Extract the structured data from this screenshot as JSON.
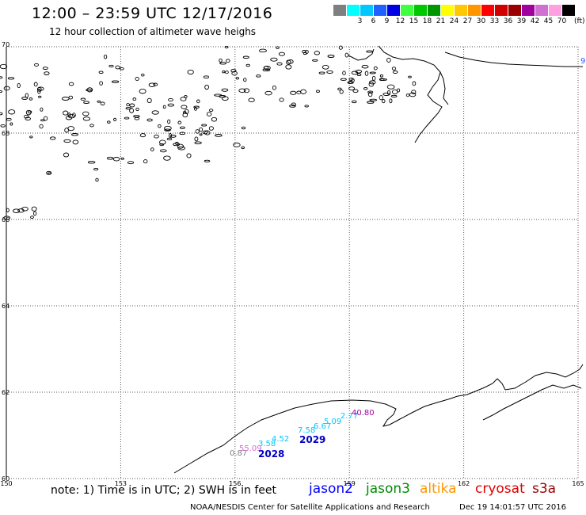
{
  "header": {
    "title": "12:00 – 23:59 UTC 12/17/2016",
    "subtitle": "12 hour collection of altimeter wave heighs"
  },
  "color_scale": {
    "unit": "(ft)",
    "bins": [
      {
        "color": "#7f7f7f",
        "label": ""
      },
      {
        "color": "#00ffff",
        "label": "3"
      },
      {
        "color": "#00c8ff",
        "label": "6"
      },
      {
        "color": "#2060ff",
        "label": "9"
      },
      {
        "color": "#0000e0",
        "label": "12"
      },
      {
        "color": "#40ff40",
        "label": "15"
      },
      {
        "color": "#00c800",
        "label": "18"
      },
      {
        "color": "#009600",
        "label": "21"
      },
      {
        "color": "#ffff00",
        "label": "24"
      },
      {
        "color": "#ffc800",
        "label": "27"
      },
      {
        "color": "#ff9600",
        "label": "30"
      },
      {
        "color": "#ff0000",
        "label": "33"
      },
      {
        "color": "#d00000",
        "label": "36"
      },
      {
        "color": "#9a0000",
        "label": "39"
      },
      {
        "color": "#a000a0",
        "label": "42"
      },
      {
        "color": "#d070d0",
        "label": "45"
      },
      {
        "color": "#ffa0e0",
        "label": "70"
      },
      {
        "color": "#000000",
        "label": ""
      }
    ]
  },
  "map": {
    "lon_ticks": [
      "150",
      "153",
      "156",
      "159",
      "162",
      "165"
    ],
    "lat_ticks": [
      "70",
      "68",
      "66",
      "64",
      "62",
      "60"
    ],
    "lon_range": [
      150,
      165
    ],
    "lat_range": [
      60,
      70
    ],
    "edge_label": "9",
    "edge_label_color": "#2060ff",
    "observations": [
      {
        "text": "0.87",
        "color": "#7f7f7f"
      },
      {
        "text": "55.09",
        "color": "#d070d0"
      },
      {
        "text": "3.58",
        "color": "#00c8ff"
      },
      {
        "text": "4.52",
        "color": "#00c8ff"
      },
      {
        "text": "7.58",
        "color": "#00c8ff"
      },
      {
        "text": "6.67",
        "color": "#00c8ff"
      },
      {
        "text": "5.09",
        "color": "#00c8ff"
      },
      {
        "text": "2.77",
        "color": "#00c8ff"
      },
      {
        "text": "40.80",
        "color": "#a000a0"
      }
    ],
    "pass_labels": [
      {
        "text": "2028",
        "color": "#0000c8"
      },
      {
        "text": "2029",
        "color": "#0000c8"
      }
    ]
  },
  "footer": {
    "note": "note: 1) Time is in UTC; 2) SWH is in feet",
    "legend": [
      {
        "name": "jason2",
        "color": "#0000ff"
      },
      {
        "name": "jason3",
        "color": "#008c00"
      },
      {
        "name": "altika",
        "color": "#ff9600"
      },
      {
        "name": "cryosat",
        "color": "#e00000"
      },
      {
        "name": "s3a",
        "color": "#9a0000"
      }
    ],
    "credit": "NOAA/NESDIS Center for Satellite Applications and Research",
    "timestamp": "Dec 19 14:01:57 UTC 2016"
  }
}
